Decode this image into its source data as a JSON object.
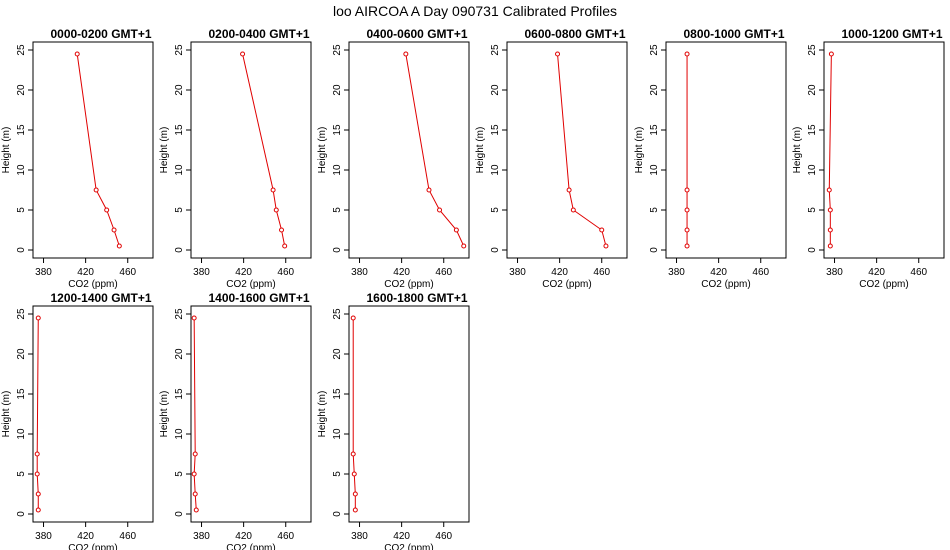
{
  "figure_title": "loo AIRCOA A  Day 090731  Calibrated Profiles",
  "colors": {
    "profile": "#e00000",
    "axis": "#000000",
    "background": "#ffffff"
  },
  "chart_data": [
    {
      "type": "line",
      "title": "0000-0200 GMT+1",
      "xlabel": "CO2 (ppm)",
      "ylabel": "Height (m)",
      "xlim": [
        370,
        484
      ],
      "ylim": [
        0,
        25
      ],
      "xticks": [
        380,
        420,
        460
      ],
      "yticks": [
        0,
        5,
        10,
        15,
        20,
        25
      ],
      "grid": false,
      "series": [
        {
          "x": [
            452,
            447,
            440,
            430,
            412
          ],
          "y": [
            0.5,
            2.5,
            5,
            7.5,
            24.5
          ]
        }
      ]
    },
    {
      "type": "line",
      "title": "0200-0400 GMT+1",
      "xlabel": "CO2 (ppm)",
      "ylabel": "Height (m)",
      "xlim": [
        370,
        484
      ],
      "ylim": [
        0,
        25
      ],
      "xticks": [
        380,
        420,
        460
      ],
      "yticks": [
        0,
        5,
        10,
        15,
        20,
        25
      ],
      "grid": false,
      "series": [
        {
          "x": [
            459,
            456,
            451,
            448,
            419
          ],
          "y": [
            0.5,
            2.5,
            5,
            7.5,
            24.5
          ]
        }
      ]
    },
    {
      "type": "line",
      "title": "0400-0600 GMT+1",
      "xlabel": "CO2 (ppm)",
      "ylabel": "Height (m)",
      "xlim": [
        370,
        484
      ],
      "ylim": [
        0,
        25
      ],
      "xticks": [
        380,
        420,
        460
      ],
      "yticks": [
        0,
        5,
        10,
        15,
        20,
        25
      ],
      "grid": false,
      "series": [
        {
          "x": [
            479,
            472,
            456,
            446,
            424
          ],
          "y": [
            0.5,
            2.5,
            5,
            7.5,
            24.5
          ]
        }
      ]
    },
    {
      "type": "line",
      "title": "0600-0800 GMT+1",
      "xlabel": "CO2 (ppm)",
      "ylabel": "Height (m)",
      "xlim": [
        370,
        484
      ],
      "ylim": [
        0,
        25
      ],
      "xticks": [
        380,
        420,
        460
      ],
      "yticks": [
        0,
        5,
        10,
        15,
        20,
        25
      ],
      "grid": false,
      "series": [
        {
          "x": [
            464,
            460,
            433,
            429,
            418
          ],
          "y": [
            0.5,
            2.5,
            5,
            7.5,
            24.5
          ]
        }
      ]
    },
    {
      "type": "line",
      "title": "0800-1000 GMT+1",
      "xlabel": "CO2 (ppm)",
      "ylabel": "Height (m)",
      "xlim": [
        370,
        484
      ],
      "ylim": [
        0,
        25
      ],
      "xticks": [
        380,
        420,
        460
      ],
      "yticks": [
        0,
        5,
        10,
        15,
        20,
        25
      ],
      "grid": false,
      "series": [
        {
          "x": [
            390,
            390,
            390,
            390,
            390
          ],
          "y": [
            0.5,
            2.5,
            5,
            7.5,
            24.5
          ]
        }
      ]
    },
    {
      "type": "line",
      "title": "1000-1200 GMT+1",
      "xlabel": "CO2 (ppm)",
      "ylabel": "Height (m)",
      "xlim": [
        370,
        484
      ],
      "ylim": [
        0,
        25
      ],
      "xticks": [
        380,
        420,
        460
      ],
      "yticks": [
        0,
        5,
        10,
        15,
        20,
        25
      ],
      "grid": false,
      "series": [
        {
          "x": [
            376,
            376,
            376,
            375,
            377
          ],
          "y": [
            0.5,
            2.5,
            5,
            7.5,
            24.5
          ]
        }
      ]
    },
    {
      "type": "line",
      "title": "1200-1400 GMT+1",
      "xlabel": "CO2 (ppm)",
      "ylabel": "Height (m)",
      "xlim": [
        370,
        484
      ],
      "ylim": [
        0,
        25
      ],
      "xticks": [
        380,
        420,
        460
      ],
      "yticks": [
        0,
        5,
        10,
        15,
        20,
        25
      ],
      "grid": false,
      "series": [
        {
          "x": [
            375,
            375,
            374,
            374,
            375
          ],
          "y": [
            0.5,
            2.5,
            5,
            7.5,
            24.5
          ]
        }
      ]
    },
    {
      "type": "line",
      "title": "1400-1600 GMT+1",
      "xlabel": "CO2 (ppm)",
      "ylabel": "Height (m)",
      "xlim": [
        370,
        484
      ],
      "ylim": [
        0,
        25
      ],
      "xticks": [
        380,
        420,
        460
      ],
      "yticks": [
        0,
        5,
        10,
        15,
        20,
        25
      ],
      "grid": false,
      "series": [
        {
          "x": [
            375,
            374,
            373,
            374,
            373
          ],
          "y": [
            0.5,
            2.5,
            5,
            7.5,
            24.5
          ]
        }
      ]
    },
    {
      "type": "line",
      "title": "1600-1800 GMT+1",
      "xlabel": "CO2 (ppm)",
      "ylabel": "Height (m)",
      "xlim": [
        370,
        484
      ],
      "ylim": [
        0,
        25
      ],
      "xticks": [
        380,
        420,
        460
      ],
      "yticks": [
        0,
        5,
        10,
        15,
        20,
        25
      ],
      "grid": false,
      "series": [
        {
          "x": [
            376,
            376,
            375,
            374,
            374
          ],
          "y": [
            0.5,
            2.5,
            5,
            7.5,
            24.5
          ]
        }
      ]
    }
  ]
}
